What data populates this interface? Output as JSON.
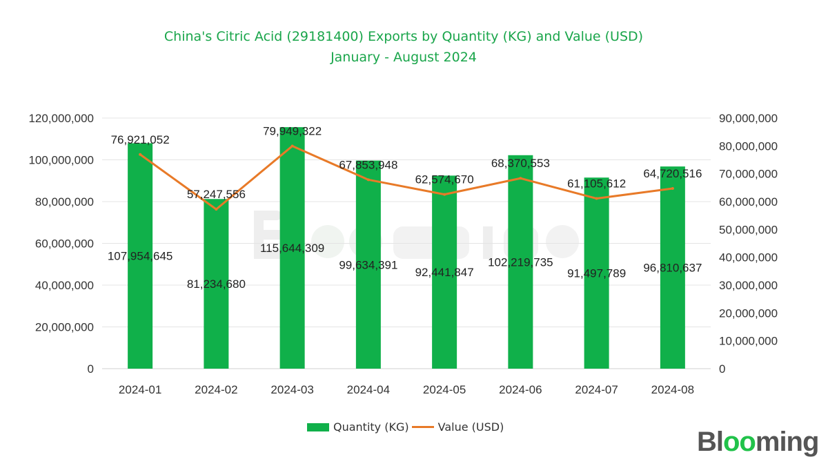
{
  "chart_data": {
    "type": "bar+line",
    "title": "China's Citric Acid (29181400) Exports by Quantity (KG) and Value (USD)",
    "subtitle": "January - August 2024",
    "categories": [
      "2024-01",
      "2024-02",
      "2024-03",
      "2024-04",
      "2024-05",
      "2024-06",
      "2024-07",
      "2024-08"
    ],
    "series": [
      {
        "name": "Quantity (KG)",
        "type": "bar",
        "axis": "left",
        "color": "#10b04a",
        "values": [
          107954645,
          81234680,
          115644309,
          99634391,
          92441847,
          102219735,
          91497789,
          96810637
        ],
        "labels": [
          "107,954,645",
          "81,234,680",
          "115,644,309",
          "99,634,391",
          "92,441,847",
          "102,219,735",
          "91,497,789",
          "96,810,637"
        ]
      },
      {
        "name": "Value (USD)",
        "type": "line",
        "axis": "right",
        "color": "#e87a28",
        "values": [
          76921052,
          57247556,
          79949322,
          67853948,
          62574670,
          68370553,
          61105612,
          64720516
        ],
        "labels": [
          "76,921,052",
          "57,247,556",
          "79,949,322",
          "67,853,948",
          "62,574,670",
          "68,370,553",
          "61,105,612",
          "64,720,516"
        ]
      }
    ],
    "left_axis": {
      "ylim": [
        0,
        120000000
      ],
      "ticks": [
        "0",
        "20,000,000",
        "40,000,000",
        "60,000,000",
        "80,000,000",
        "100,000,000",
        "120,000,000"
      ]
    },
    "right_axis": {
      "ylim": [
        0,
        90000000
      ],
      "ticks": [
        "0",
        "10,000,000",
        "20,000,000",
        "30,000,000",
        "40,000,000",
        "50,000,000",
        "60,000,000",
        "70,000,000",
        "80,000,000",
        "90,000,000"
      ]
    },
    "grid": true,
    "legend": "bottom"
  },
  "watermark": "Blooming",
  "logo": {
    "text": "Blooming",
    "accent": "#21c24a"
  }
}
